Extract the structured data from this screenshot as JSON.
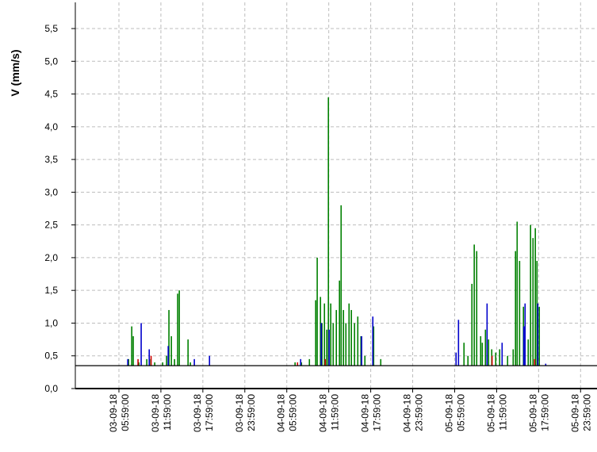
{
  "chart_data": {
    "type": "bar",
    "y_label": "V (mm/s)",
    "ylim": [
      0,
      5.9
    ],
    "yticks": [
      {
        "value": 0,
        "label": "0,0"
      },
      {
        "value": 0.5,
        "label": "0,5"
      },
      {
        "value": 1,
        "label": "1,0"
      },
      {
        "value": 1.5,
        "label": "1,5"
      },
      {
        "value": 2,
        "label": "2,0"
      },
      {
        "value": 2.5,
        "label": "2,5"
      },
      {
        "value": 3,
        "label": "3,0"
      },
      {
        "value": 3.5,
        "label": "3,5"
      },
      {
        "value": 4,
        "label": "4,0"
      },
      {
        "value": 4.5,
        "label": "4,5"
      },
      {
        "value": 5,
        "label": "5,0"
      },
      {
        "value": 5.5,
        "label": "5,5"
      }
    ],
    "xlim": [
      "02-09-18 23:45:00",
      "06-09-18 02:20:00"
    ],
    "xticks": [
      "03-09-18 05:59:00",
      "03-09-18 11:59:00",
      "03-09-18 17:59:00",
      "03-09-18 23:59:00",
      "04-09-18 05:59:00",
      "04-09-18 11:59:00",
      "04-09-18 17:59:00",
      "04-09-18 23:59:00",
      "05-09-18 05:59:00",
      "05-09-18 11:59:00",
      "05-09-18 17:59:00",
      "05-09-18 23:59:00"
    ],
    "grid": true,
    "reference_line": 0.35,
    "series": [
      {
        "color": "#008000",
        "x": [
          "03-09-18 07:22:00",
          "03-09-18 07:49:00",
          "03-09-18 08:02:00",
          "03-09-18 08:50:00",
          "03-09-18 09:58:00",
          "03-09-18 10:32:00",
          "03-09-18 11:06:00",
          "03-09-18 12:14:00",
          "03-09-18 12:48:00",
          "03-09-18 13:08:00",
          "03-09-18 13:29:00",
          "03-09-18 13:56:00",
          "03-09-18 14:23:00",
          "03-09-18 14:37:00",
          "03-09-18 15:52:00",
          "03-09-18 16:12:00",
          "04-09-18 07:10:00",
          "04-09-18 08:05:00",
          "04-09-18 09:13:00",
          "04-09-18 10:07:00",
          "04-09-18 10:20:00",
          "04-09-18 10:48:00",
          "04-09-18 11:01:00",
          "04-09-18 11:22:00",
          "04-09-18 11:42:00",
          "04-09-18 11:56:00",
          "04-09-18 12:16:00",
          "04-09-18 12:37:00",
          "04-09-18 13:04:00",
          "04-09-18 13:31:00",
          "04-09-18 13:45:00",
          "04-09-18 14:05:00",
          "04-09-18 14:26:00",
          "04-09-18 14:53:00",
          "04-09-18 15:13:00",
          "04-09-18 15:40:00",
          "04-09-18 16:08:00",
          "04-09-18 16:35:00",
          "04-09-18 17:09:00",
          "04-09-18 18:24:00",
          "04-09-18 19:25:00",
          "05-09-18 07:19:00",
          "05-09-18 07:53:00",
          "05-09-18 08:27:00",
          "05-09-18 08:47:00",
          "05-09-18 09:08:00",
          "05-09-18 09:42:00",
          "05-09-18 09:56:00",
          "05-09-18 10:23:00",
          "05-09-18 10:50:00",
          "05-09-18 11:17:00",
          "05-09-18 11:51:00",
          "05-09-18 12:25:00",
          "05-09-18 13:33:00",
          "05-09-18 14:21:00",
          "05-09-18 14:41:00",
          "05-09-18 14:55:00",
          "05-09-18 15:16:00",
          "05-09-18 15:49:00",
          "05-09-18 16:30:00",
          "05-09-18 16:50:00",
          "05-09-18 17:11:00",
          "05-09-18 17:31:00",
          "05-09-18 17:45:00",
          "05-09-18 18:05:00"
        ],
        "values": [
          0.45,
          0.95,
          0.8,
          0.4,
          0.45,
          0.45,
          0.4,
          0.4,
          0.5,
          1.2,
          0.8,
          0.45,
          1.45,
          1.5,
          0.75,
          0.4,
          0.4,
          0.4,
          0.45,
          1.35,
          2.0,
          1.4,
          1.0,
          1.3,
          0.9,
          4.45,
          1.3,
          1.0,
          1.2,
          1.65,
          2.8,
          1.2,
          1.0,
          1.3,
          1.2,
          1.0,
          1.1,
          0.8,
          0.5,
          0.95,
          0.45,
          0.7,
          0.5,
          1.6,
          2.2,
          2.1,
          0.8,
          0.7,
          0.9,
          0.75,
          0.6,
          0.55,
          0.6,
          0.5,
          0.6,
          2.1,
          2.55,
          1.95,
          1.25,
          0.75,
          2.5,
          2.3,
          2.45,
          1.95,
          1.25
        ]
      },
      {
        "color": "#0000cc",
        "x": [
          "03-09-18 07:15:00",
          "03-09-18 09:10:00",
          "03-09-18 10:19:00",
          "03-09-18 13:02:00",
          "03-09-18 16:46:00",
          "03-09-18 18:56:00",
          "04-09-18 07:58:00",
          "04-09-18 10:55:00",
          "04-09-18 12:02:00",
          "04-09-18 16:41:00",
          "04-09-18 18:17:00",
          "05-09-18 06:11:00",
          "05-09-18 06:32:00",
          "05-09-18 10:37:00",
          "05-09-18 12:46:00",
          "05-09-18 15:52:00",
          "05-09-18 16:03:00",
          "05-09-18 17:52:00",
          "05-09-18 19:00:00"
        ],
        "values": [
          0.45,
          1.0,
          0.6,
          0.65,
          0.45,
          0.5,
          0.45,
          1.0,
          0.9,
          0.8,
          1.1,
          0.55,
          1.05,
          1.3,
          0.7,
          0.95,
          1.3,
          1.3,
          0.38
        ]
      },
      {
        "color": "#cc0000",
        "x": [
          "03-09-18 08:43:00",
          "03-09-18 10:35:00",
          "04-09-18 07:31:00",
          "04-09-18 11:29:00",
          "05-09-18 11:20:00",
          "05-09-18 17:25:00"
        ],
        "values": [
          0.45,
          0.5,
          0.4,
          0.45,
          0.5,
          0.45
        ]
      }
    ]
  }
}
